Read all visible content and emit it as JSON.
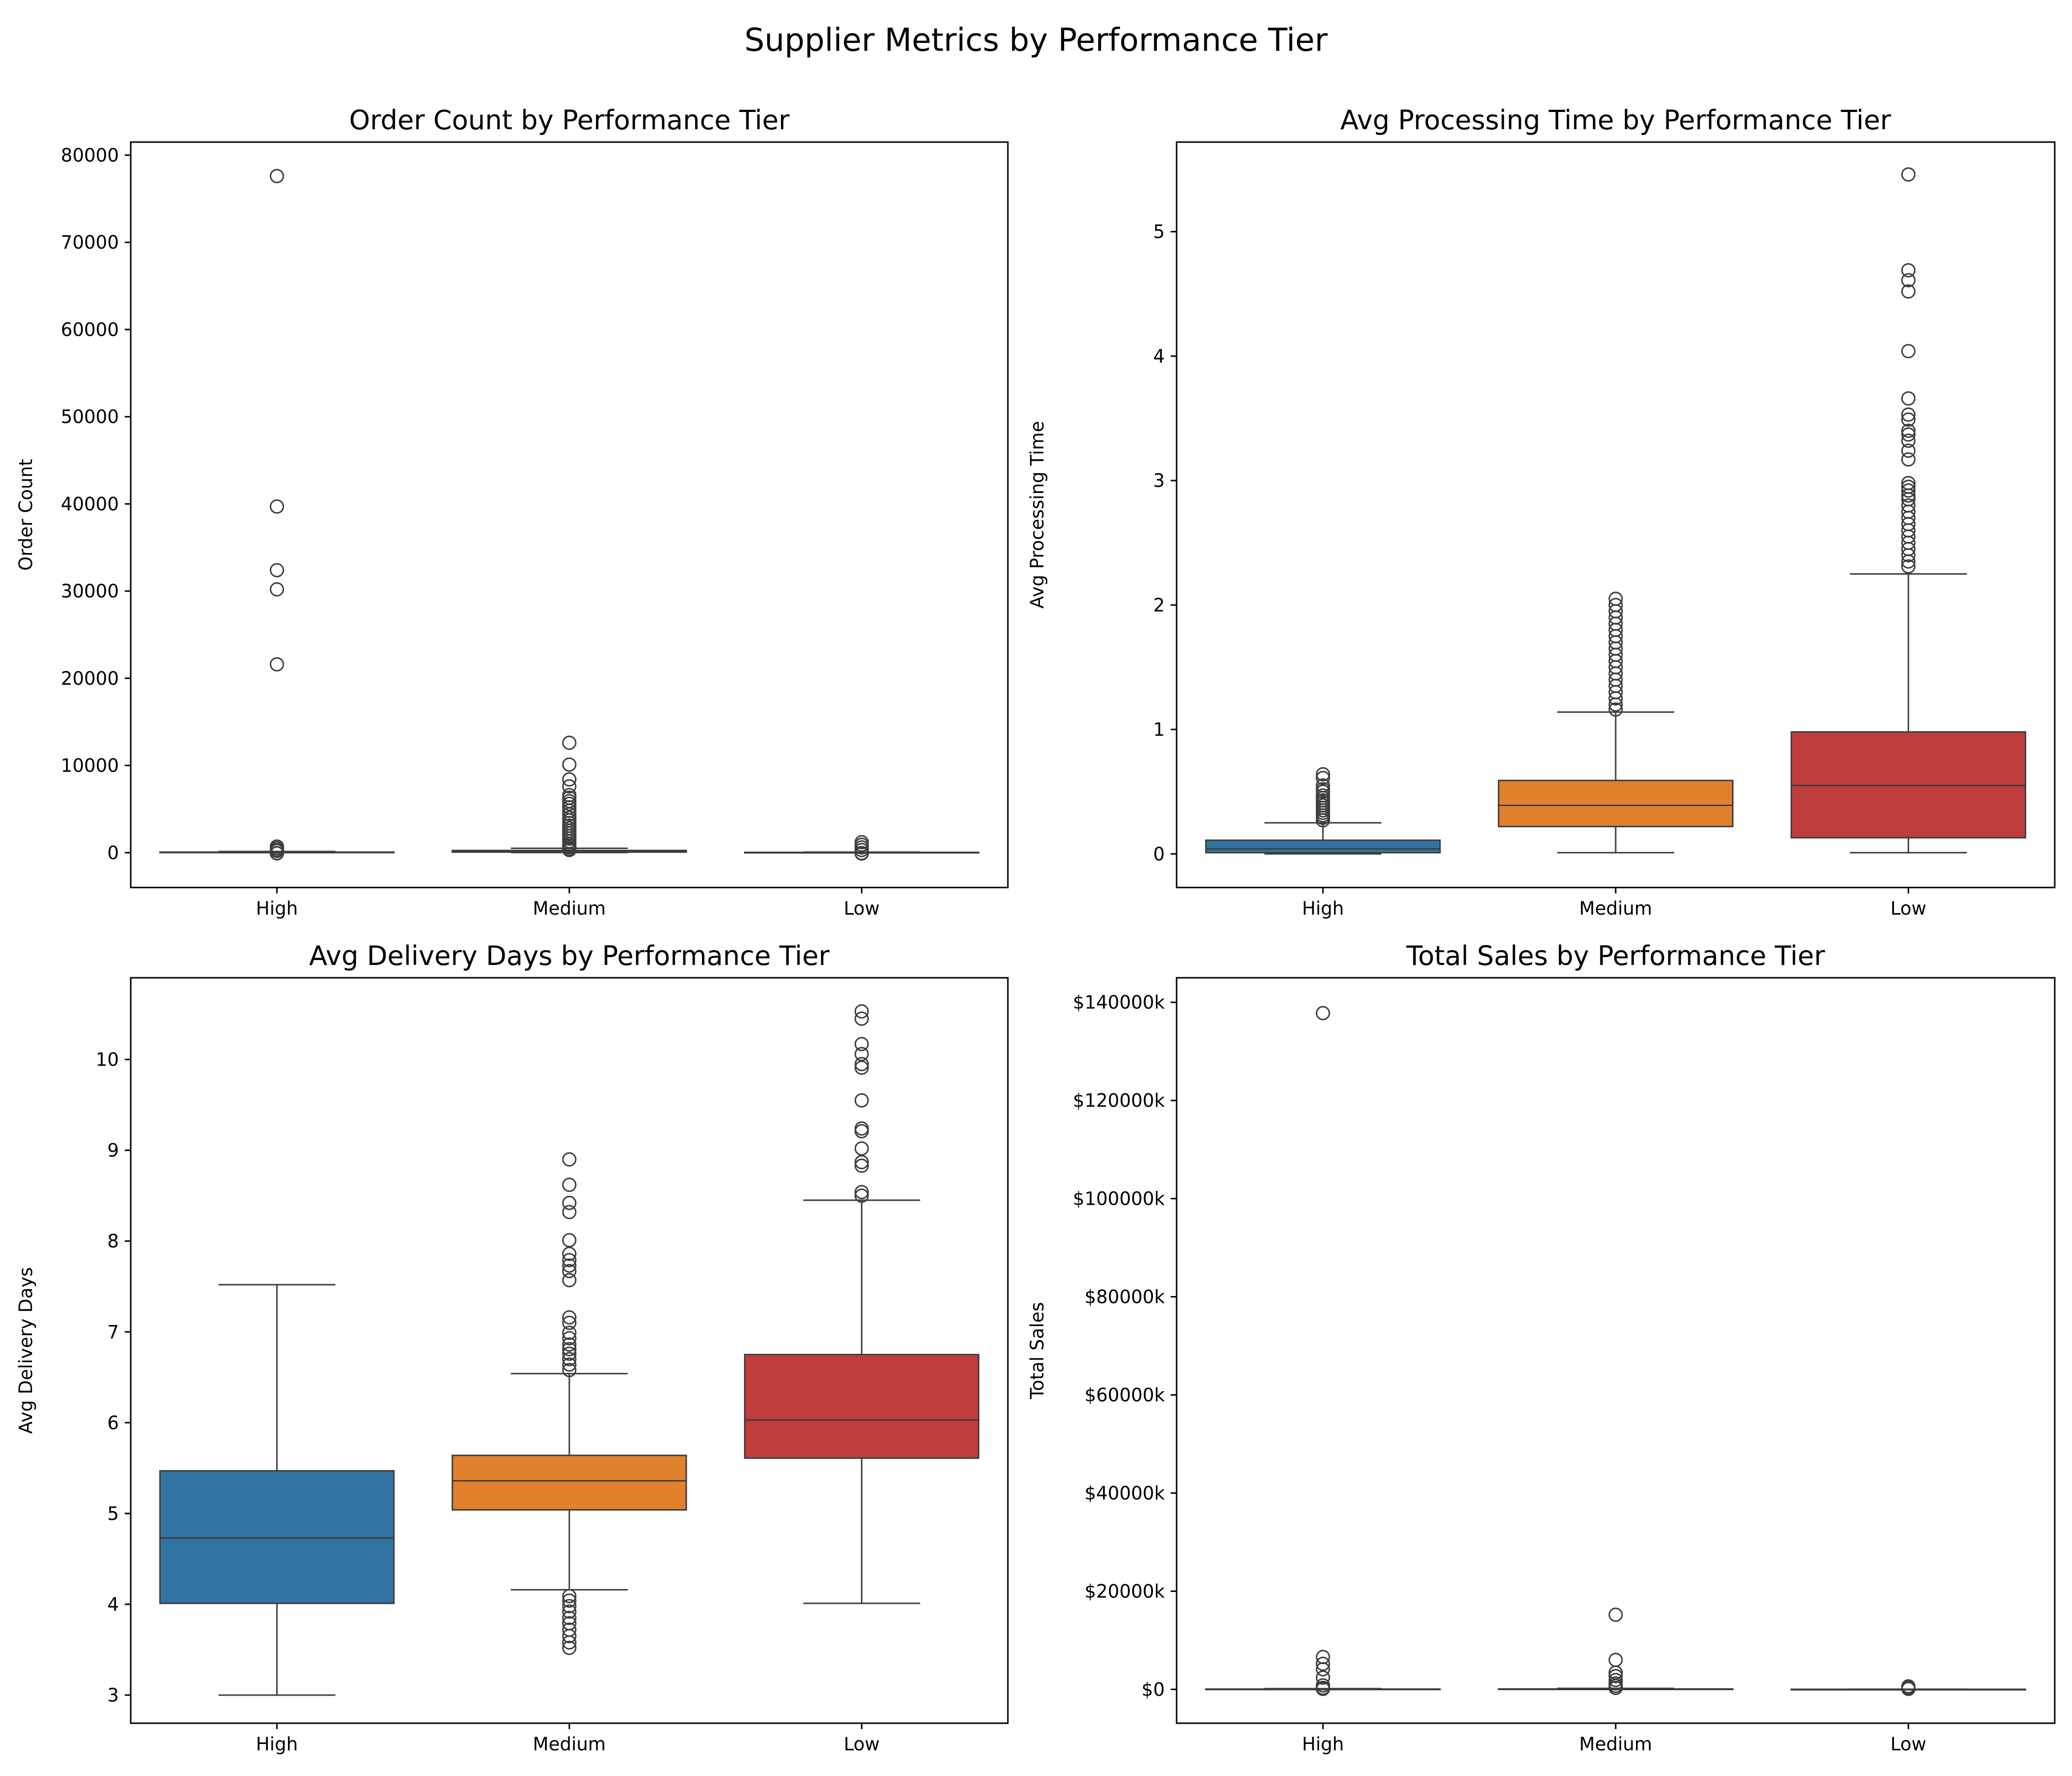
{
  "figure": {
    "title": "Supplier Metrics by Performance Tier"
  },
  "colors": {
    "High": "#3274a1",
    "Medium": "#e1812c",
    "Low": "#c03d3e",
    "edge": "#3d3d3d"
  },
  "chart_data": [
    {
      "type": "box",
      "title": "Order Count by Performance Tier",
      "xlabel": "",
      "ylabel": "Order Count",
      "ylim": [
        -4000,
        81500
      ],
      "yticks": [
        0,
        10000,
        20000,
        30000,
        40000,
        50000,
        60000,
        70000,
        80000
      ],
      "ytick_labels": [
        "0",
        "10000",
        "20000",
        "30000",
        "40000",
        "50000",
        "60000",
        "70000",
        "80000"
      ],
      "categories": [
        "High",
        "Medium",
        "Low"
      ],
      "boxes": [
        {
          "category": "High",
          "whislo": 0,
          "q1": 5,
          "med": 20,
          "q3": 60,
          "whishi": 130,
          "fliers": [
            77600,
            39700,
            32400,
            30200,
            21600,
            700,
            500,
            300,
            200,
            -50,
            -80
          ]
        },
        {
          "category": "Medium",
          "whislo": 10,
          "q1": 60,
          "med": 120,
          "q3": 250,
          "whishi": 500,
          "fliers": [
            12600,
            10100,
            8400,
            7600,
            6600,
            6300,
            5900,
            5600,
            5200,
            4800,
            4400,
            4000,
            3700,
            3400,
            3100,
            2800,
            2500,
            2200,
            1900,
            1600,
            1300,
            1000,
            800,
            600,
            400,
            300
          ]
        },
        {
          "category": "Low",
          "whislo": 0,
          "q1": 3,
          "med": 10,
          "q3": 30,
          "whishi": 60,
          "fliers": [
            1200,
            900,
            600,
            300,
            -50,
            -100
          ]
        }
      ]
    },
    {
      "type": "box",
      "title": "Avg Processing Time by Performance Tier",
      "xlabel": "",
      "ylabel": "Avg Processing Time",
      "ylim": [
        -0.27,
        5.72
      ],
      "yticks": [
        0,
        1,
        2,
        3,
        4,
        5
      ],
      "ytick_labels": [
        "0",
        "1",
        "2",
        "3",
        "4",
        "5"
      ],
      "categories": [
        "High",
        "Medium",
        "Low"
      ],
      "boxes": [
        {
          "category": "High",
          "whislo": 0,
          "q1": 0.01,
          "med": 0.04,
          "q3": 0.11,
          "whishi": 0.25,
          "fliers": [
            0.64,
            0.61,
            0.55,
            0.52,
            0.5,
            0.47,
            0.45,
            0.43,
            0.41,
            0.39,
            0.37,
            0.35,
            0.33,
            0.31,
            0.29,
            0.27
          ]
        },
        {
          "category": "Medium",
          "whislo": 0.01,
          "q1": 0.22,
          "med": 0.39,
          "q3": 0.59,
          "whishi": 1.14,
          "fliers": [
            2.05,
            2.0,
            1.95,
            1.9,
            1.85,
            1.8,
            1.75,
            1.7,
            1.65,
            1.6,
            1.55,
            1.5,
            1.45,
            1.4,
            1.35,
            1.3,
            1.25,
            1.2,
            1.16
          ]
        },
        {
          "category": "Low",
          "whislo": 0.01,
          "q1": 0.13,
          "med": 0.55,
          "q3": 0.98,
          "whishi": 2.25,
          "fliers": [
            5.46,
            4.69,
            4.61,
            4.52,
            4.04,
            3.66,
            3.53,
            3.49,
            3.4,
            3.37,
            3.32,
            3.24,
            3.17,
            2.98,
            2.95,
            2.92,
            2.88,
            2.85,
            2.8,
            2.75,
            2.7,
            2.65,
            2.6,
            2.55,
            2.5,
            2.45,
            2.4,
            2.35,
            2.31
          ]
        }
      ]
    },
    {
      "type": "box",
      "title": "Avg Delivery Days by Performance Tier",
      "xlabel": "",
      "ylabel": "Avg Delivery Days",
      "ylim": [
        2.69,
        10.9
      ],
      "yticks": [
        3,
        4,
        5,
        6,
        7,
        8,
        9,
        10
      ],
      "ytick_labels": [
        "3",
        "4",
        "5",
        "6",
        "7",
        "8",
        "9",
        "10"
      ],
      "categories": [
        "High",
        "Medium",
        "Low"
      ],
      "boxes": [
        {
          "category": "High",
          "whislo": 3.0,
          "q1": 4.01,
          "med": 4.73,
          "q3": 5.47,
          "whishi": 7.52,
          "fliers": []
        },
        {
          "category": "Medium",
          "whislo": 4.16,
          "q1": 5.04,
          "med": 5.36,
          "q3": 5.64,
          "whishi": 6.54,
          "fliers": [
            8.9,
            8.62,
            8.42,
            8.32,
            8.01,
            7.86,
            7.79,
            7.73,
            7.67,
            7.57,
            7.16,
            7.1,
            6.99,
            6.93,
            6.86,
            6.81,
            6.76,
            6.7,
            6.64,
            6.58,
            4.09,
            4.04,
            3.98,
            3.92,
            3.85,
            3.79,
            3.72,
            3.65,
            3.58,
            3.52
          ]
        },
        {
          "category": "Low",
          "whislo": 4.01,
          "q1": 5.61,
          "med": 6.03,
          "q3": 6.75,
          "whishi": 8.45,
          "fliers": [
            10.53,
            10.45,
            10.17,
            10.06,
            9.95,
            9.91,
            9.55,
            9.24,
            9.21,
            9.02,
            8.87,
            8.83,
            8.54,
            8.5
          ]
        }
      ]
    },
    {
      "type": "box",
      "title": "Total Sales by Performance Tier",
      "xlabel": "",
      "ylabel": "Total Sales",
      "ylim": [
        -6900,
        145000
      ],
      "yticks": [
        0,
        20000,
        40000,
        60000,
        80000,
        100000,
        120000,
        140000
      ],
      "ytick_labels": [
        "$0",
        "$20000k",
        "$40000k",
        "$60000k",
        "$80000k",
        "$100000k",
        "$120000k",
        "$140000k"
      ],
      "categories": [
        "High",
        "Medium",
        "Low"
      ],
      "boxes": [
        {
          "category": "High",
          "whislo": 0,
          "q1": 5,
          "med": 20,
          "q3": 60,
          "whishi": 150,
          "fliers": [
            137800,
            6600,
            5200,
            4100,
            2400,
            800,
            300,
            100
          ]
        },
        {
          "category": "Medium",
          "whislo": 0,
          "q1": 10,
          "med": 30,
          "q3": 80,
          "whishi": 200,
          "fliers": [
            15200,
            6000,
            3400,
            2700,
            1900,
            1200,
            700,
            300
          ]
        },
        {
          "category": "Low",
          "whislo": 0,
          "q1": 1,
          "med": 3,
          "q3": 8,
          "whishi": 20,
          "fliers": [
            600,
            300,
            100
          ]
        }
      ]
    }
  ]
}
